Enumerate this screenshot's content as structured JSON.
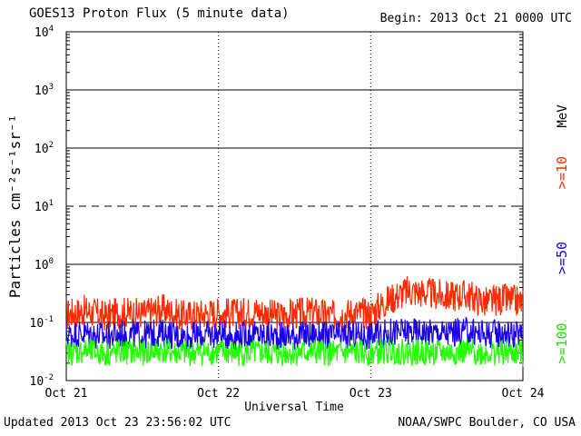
{
  "header": {
    "title": "GOES13 Proton Flux (5 minute data)",
    "begin": "Begin: 2013 Oct 21 0000 UTC"
  },
  "footer": {
    "updated": "Updated 2013 Oct 23 23:56:02 UTC",
    "credit": "NOAA/SWPC Boulder, CO USA"
  },
  "chart_data": {
    "type": "line",
    "title": "GOES13 Proton Flux (5 minute data)",
    "xlabel": "Universal Time",
    "ylabel": "Particles cm⁻²s⁻¹sr⁻¹",
    "yscale": "log",
    "ylim": [
      0.01,
      10000
    ],
    "xlim": [
      0,
      3
    ],
    "x_tick_labels": [
      "Oct 21",
      "Oct 22",
      "Oct 23",
      "Oct 24"
    ],
    "y_tick_labels": [
      {
        "base": "10",
        "exp": "-2"
      },
      {
        "base": "10",
        "exp": "-1"
      },
      {
        "base": "10",
        "exp": "0"
      },
      {
        "base": "10",
        "exp": "1"
      },
      {
        "base": "10",
        "exp": "2"
      },
      {
        "base": "10",
        "exp": "3"
      },
      {
        "base": "10",
        "exp": "4"
      }
    ],
    "threshold_lines": [
      {
        "value": 0.1,
        "style": "solid"
      },
      {
        "value": 1,
        "style": "solid"
      },
      {
        "value": 10,
        "style": "dashed"
      },
      {
        "value": 100,
        "style": "solid"
      },
      {
        "value": 1000,
        "style": "solid"
      }
    ],
    "energy_unit": "MeV",
    "x_samples": [
      0,
      0.125,
      0.25,
      0.375,
      0.5,
      0.625,
      0.75,
      0.875,
      1.0,
      1.125,
      1.25,
      1.375,
      1.5,
      1.625,
      1.75,
      1.875,
      2.0,
      2.125,
      2.25,
      2.375,
      2.5,
      2.625,
      2.75,
      2.875,
      3.0
    ],
    "series": [
      {
        "name": ">=10",
        "color": "#ff2a00",
        "values": [
          0.14,
          0.16,
          0.13,
          0.15,
          0.14,
          0.17,
          0.13,
          0.14,
          0.15,
          0.14,
          0.16,
          0.13,
          0.14,
          0.15,
          0.13,
          0.15,
          0.14,
          0.25,
          0.35,
          0.32,
          0.28,
          0.3,
          0.22,
          0.25,
          0.22
        ]
      },
      {
        "name": ">=50",
        "color": "#1a00e6",
        "values": [
          0.06,
          0.065,
          0.058,
          0.062,
          0.06,
          0.066,
          0.057,
          0.06,
          0.063,
          0.059,
          0.061,
          0.058,
          0.06,
          0.062,
          0.057,
          0.061,
          0.06,
          0.066,
          0.07,
          0.068,
          0.065,
          0.07,
          0.064,
          0.066,
          0.06
        ]
      },
      {
        "name": ">=100",
        "color": "#22ff00",
        "values": [
          0.03,
          0.032,
          0.029,
          0.031,
          0.03,
          0.033,
          0.029,
          0.03,
          0.031,
          0.029,
          0.03,
          0.029,
          0.03,
          0.031,
          0.029,
          0.03,
          0.03,
          0.032,
          0.031,
          0.03,
          0.03,
          0.031,
          0.03,
          0.03,
          0.029
        ]
      }
    ]
  }
}
